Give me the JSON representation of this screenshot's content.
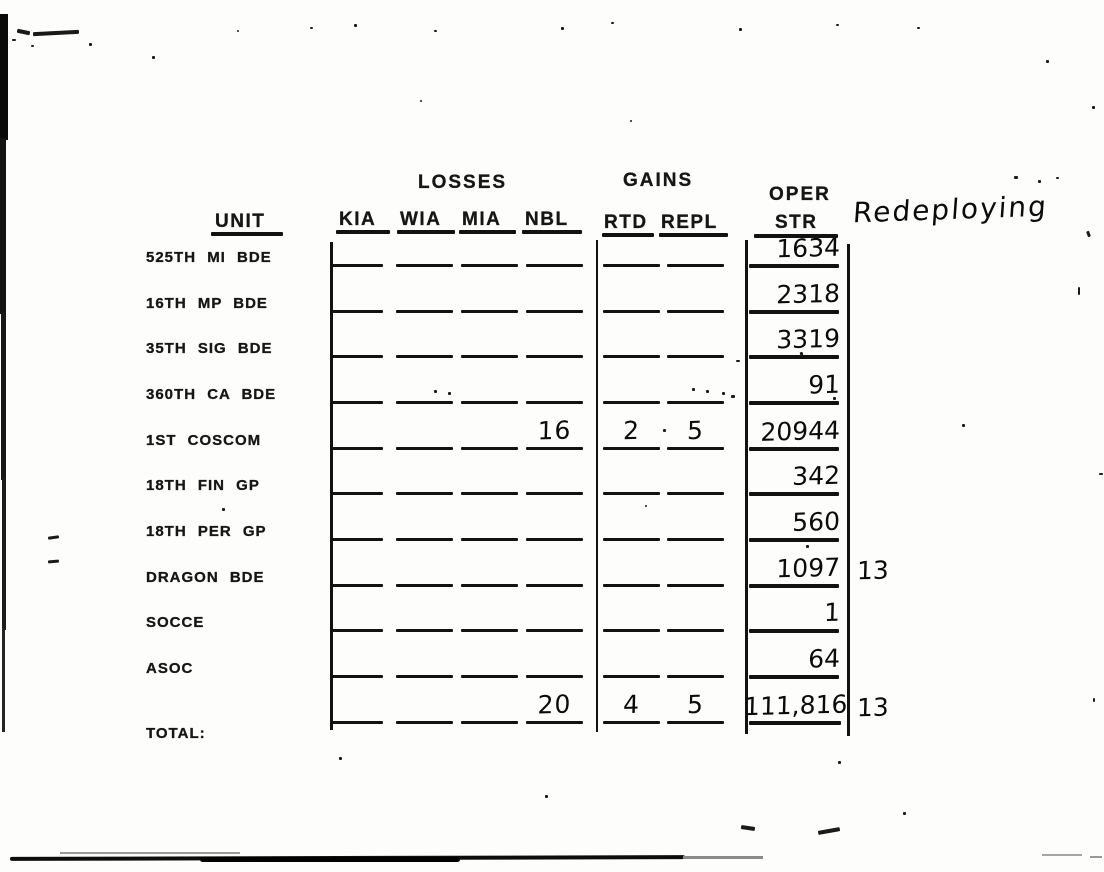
{
  "page": {
    "background": "#fdfdfc",
    "ink": "#141414",
    "kind": "scanned personnel strength report"
  },
  "header": {
    "unit_label": "UNIT",
    "losses_group_label": "LOSSES",
    "gains_group_label": "GAINS",
    "oper_label_line1": "OPER",
    "oper_label_line2": "STR",
    "loss_columns": [
      "KIA",
      "WIA",
      "MIA",
      "NBL"
    ],
    "gain_columns": [
      "RTD",
      "REPL"
    ],
    "redeploying_note": "Redeploying"
  },
  "table": {
    "rows": [
      {
        "unit": "525TH MI BDE",
        "kia": "",
        "wia": "",
        "mia": "",
        "nbl": "",
        "rtd": "",
        "repl": "",
        "oper_str": "1634",
        "redeploying": ""
      },
      {
        "unit": "16TH MP BDE",
        "kia": "",
        "wia": "",
        "mia": "",
        "nbl": "",
        "rtd": "",
        "repl": "",
        "oper_str": "2318",
        "redeploying": ""
      },
      {
        "unit": "35TH SIG BDE",
        "kia": "",
        "wia": "",
        "mia": "",
        "nbl": "",
        "rtd": "",
        "repl": "",
        "oper_str": "3319",
        "redeploying": ""
      },
      {
        "unit": "360TH CA BDE",
        "kia": "",
        "wia": "",
        "mia": "",
        "nbl": "",
        "rtd": "",
        "repl": "",
        "oper_str": "91",
        "redeploying": ""
      },
      {
        "unit": "1ST COSCOM",
        "kia": "",
        "wia": "",
        "mia": "",
        "nbl": "16",
        "rtd": "2",
        "repl": "5",
        "oper_str": "20944",
        "redeploying": ""
      },
      {
        "unit": "18TH FIN GP",
        "kia": "",
        "wia": "",
        "mia": "",
        "nbl": "",
        "rtd": "",
        "repl": "",
        "oper_str": "342",
        "redeploying": ""
      },
      {
        "unit": "18TH PER GP",
        "kia": "",
        "wia": "",
        "mia": "",
        "nbl": "",
        "rtd": "",
        "repl": "",
        "oper_str": "560",
        "redeploying": ""
      },
      {
        "unit": "DRAGON BDE",
        "kia": "",
        "wia": "",
        "mia": "",
        "nbl": "",
        "rtd": "",
        "repl": "",
        "oper_str": "1097",
        "redeploying": "13"
      },
      {
        "unit": "SOCCE",
        "kia": "",
        "wia": "",
        "mia": "",
        "nbl": "",
        "rtd": "",
        "repl": "",
        "oper_str": "1",
        "redeploying": ""
      },
      {
        "unit": "ASOC",
        "kia": "",
        "wia": "",
        "mia": "",
        "nbl": "",
        "rtd": "",
        "repl": "",
        "oper_str": "64",
        "redeploying": ""
      },
      {
        "unit": "TOTAL:",
        "kia": "",
        "wia": "",
        "mia": "",
        "nbl": "20",
        "rtd": "4",
        "repl": "5",
        "oper_str": "111,816",
        "redeploying": "13",
        "is_total": true
      }
    ]
  }
}
